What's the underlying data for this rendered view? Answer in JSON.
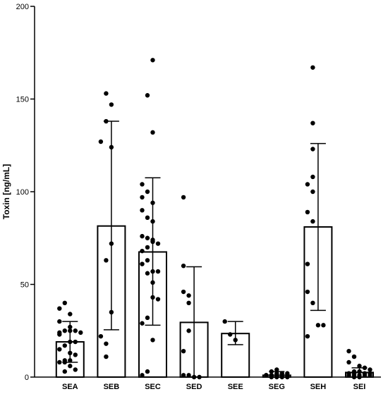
{
  "chart_data": {
    "type": "bar",
    "title": "",
    "xlabel": "",
    "ylabel": "Toxin [ng/mL]",
    "ylim": [
      0,
      200
    ],
    "yticks": [
      0,
      50,
      100,
      150,
      200
    ],
    "grid": false,
    "legend": "none",
    "bar_fill": "#ffffff",
    "stroke_color": "#000000",
    "categories": [
      "SEA",
      "SEB",
      "SEC",
      "SED",
      "SEE",
      "SEG",
      "SEH",
      "SEI"
    ],
    "values": [
      19,
      81.5,
      67.5,
      29.5,
      23.5,
      1,
      81,
      2.5
    ],
    "error_upper": [
      30,
      138,
      107.5,
      59.5,
      30,
      3,
      126,
      5
    ],
    "error_lower": [
      8,
      25.5,
      28,
      0,
      17.5,
      0,
      36,
      0
    ],
    "points": [
      [
        40,
        37,
        34,
        30,
        27,
        25,
        25,
        25,
        24,
        24,
        23,
        19,
        19,
        17,
        15,
        13,
        12,
        9,
        9,
        8,
        8,
        6,
        4,
        3
      ],
      [
        153,
        147,
        138,
        127,
        124,
        72,
        63,
        35,
        22,
        18,
        11
      ],
      [
        171,
        152,
        132,
        104,
        100,
        97,
        94,
        90,
        86,
        84,
        76,
        75,
        74,
        73,
        72,
        70,
        68,
        63,
        61,
        57,
        57,
        56,
        51,
        43,
        42,
        32,
        29,
        20,
        3,
        1
      ],
      [
        97,
        60,
        46,
        44,
        40,
        25,
        14,
        1,
        1,
        0,
        0
      ],
      [
        30,
        23,
        20
      ],
      [
        4,
        3,
        2,
        2,
        2,
        1,
        1,
        1,
        1,
        1,
        1,
        0,
        0,
        0,
        0
      ],
      [
        167,
        137,
        123,
        108,
        104,
        100,
        89,
        84,
        61,
        46,
        40,
        28,
        28,
        22
      ],
      [
        14,
        11,
        8,
        6,
        5,
        4,
        3,
        3,
        2,
        2,
        2,
        2,
        1,
        1,
        1,
        1,
        1,
        1,
        0,
        0
      ]
    ]
  }
}
